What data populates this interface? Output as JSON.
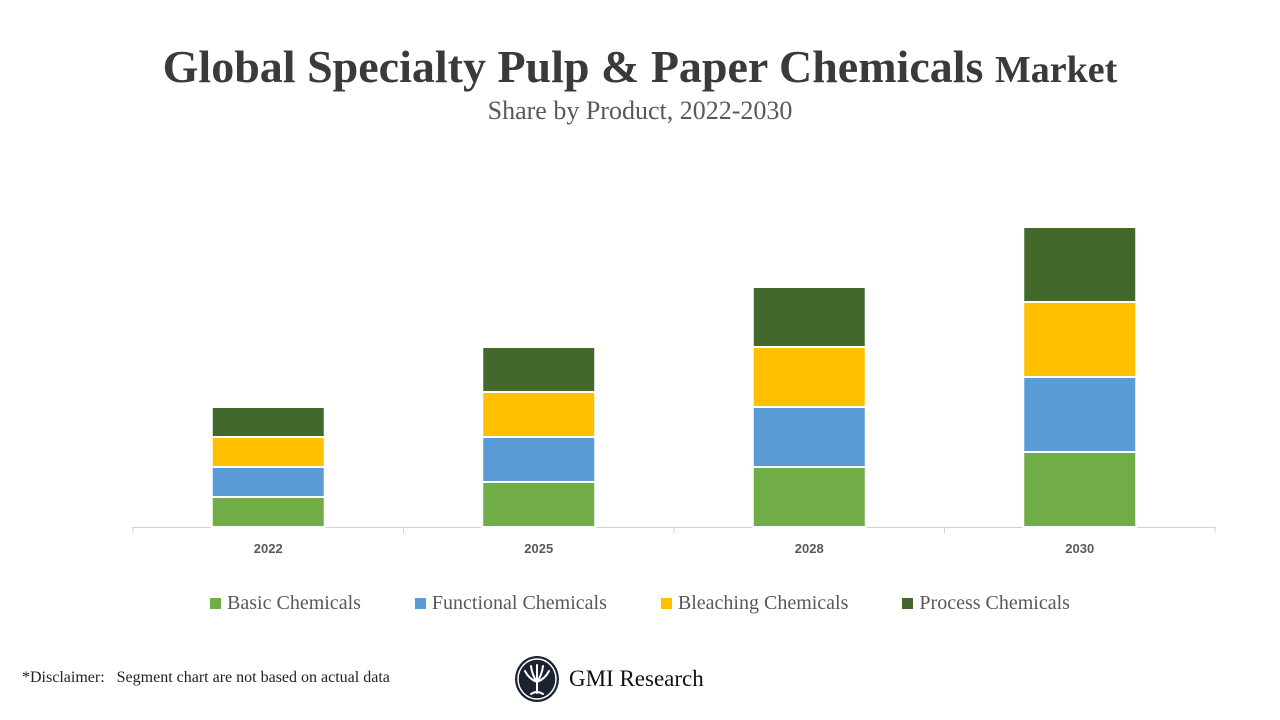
{
  "chart_data": {
    "type": "bar",
    "stacked": true,
    "title_main": "Global Specialty Pulp & Paper Chemicals",
    "title_suffix": "Market",
    "subtitle": "Share by Product, 2022-2030",
    "categories": [
      "2022",
      "2025",
      "2028",
      "2030"
    ],
    "series": [
      {
        "name": "Basic Chemicals",
        "color": "#70AD47",
        "values": [
          2,
          3,
          4,
          5
        ]
      },
      {
        "name": "Functional Chemicals",
        "color": "#5B9BD5",
        "values": [
          2,
          3,
          4,
          5
        ]
      },
      {
        "name": "Bleaching Chemicals",
        "color": "#FFC000",
        "values": [
          2,
          3,
          4,
          5
        ]
      },
      {
        "name": "Process Chemicals",
        "color": "#43682B",
        "values": [
          2,
          3,
          4,
          5
        ]
      }
    ],
    "ylim": [
      0,
      20
    ],
    "grid": false,
    "y_axis_visible": false,
    "legend_position": "bottom"
  },
  "footer": {
    "disclaimer": "*Disclaimer:   Segment chart are not based on actual data",
    "logo_text": "GMI Research"
  }
}
